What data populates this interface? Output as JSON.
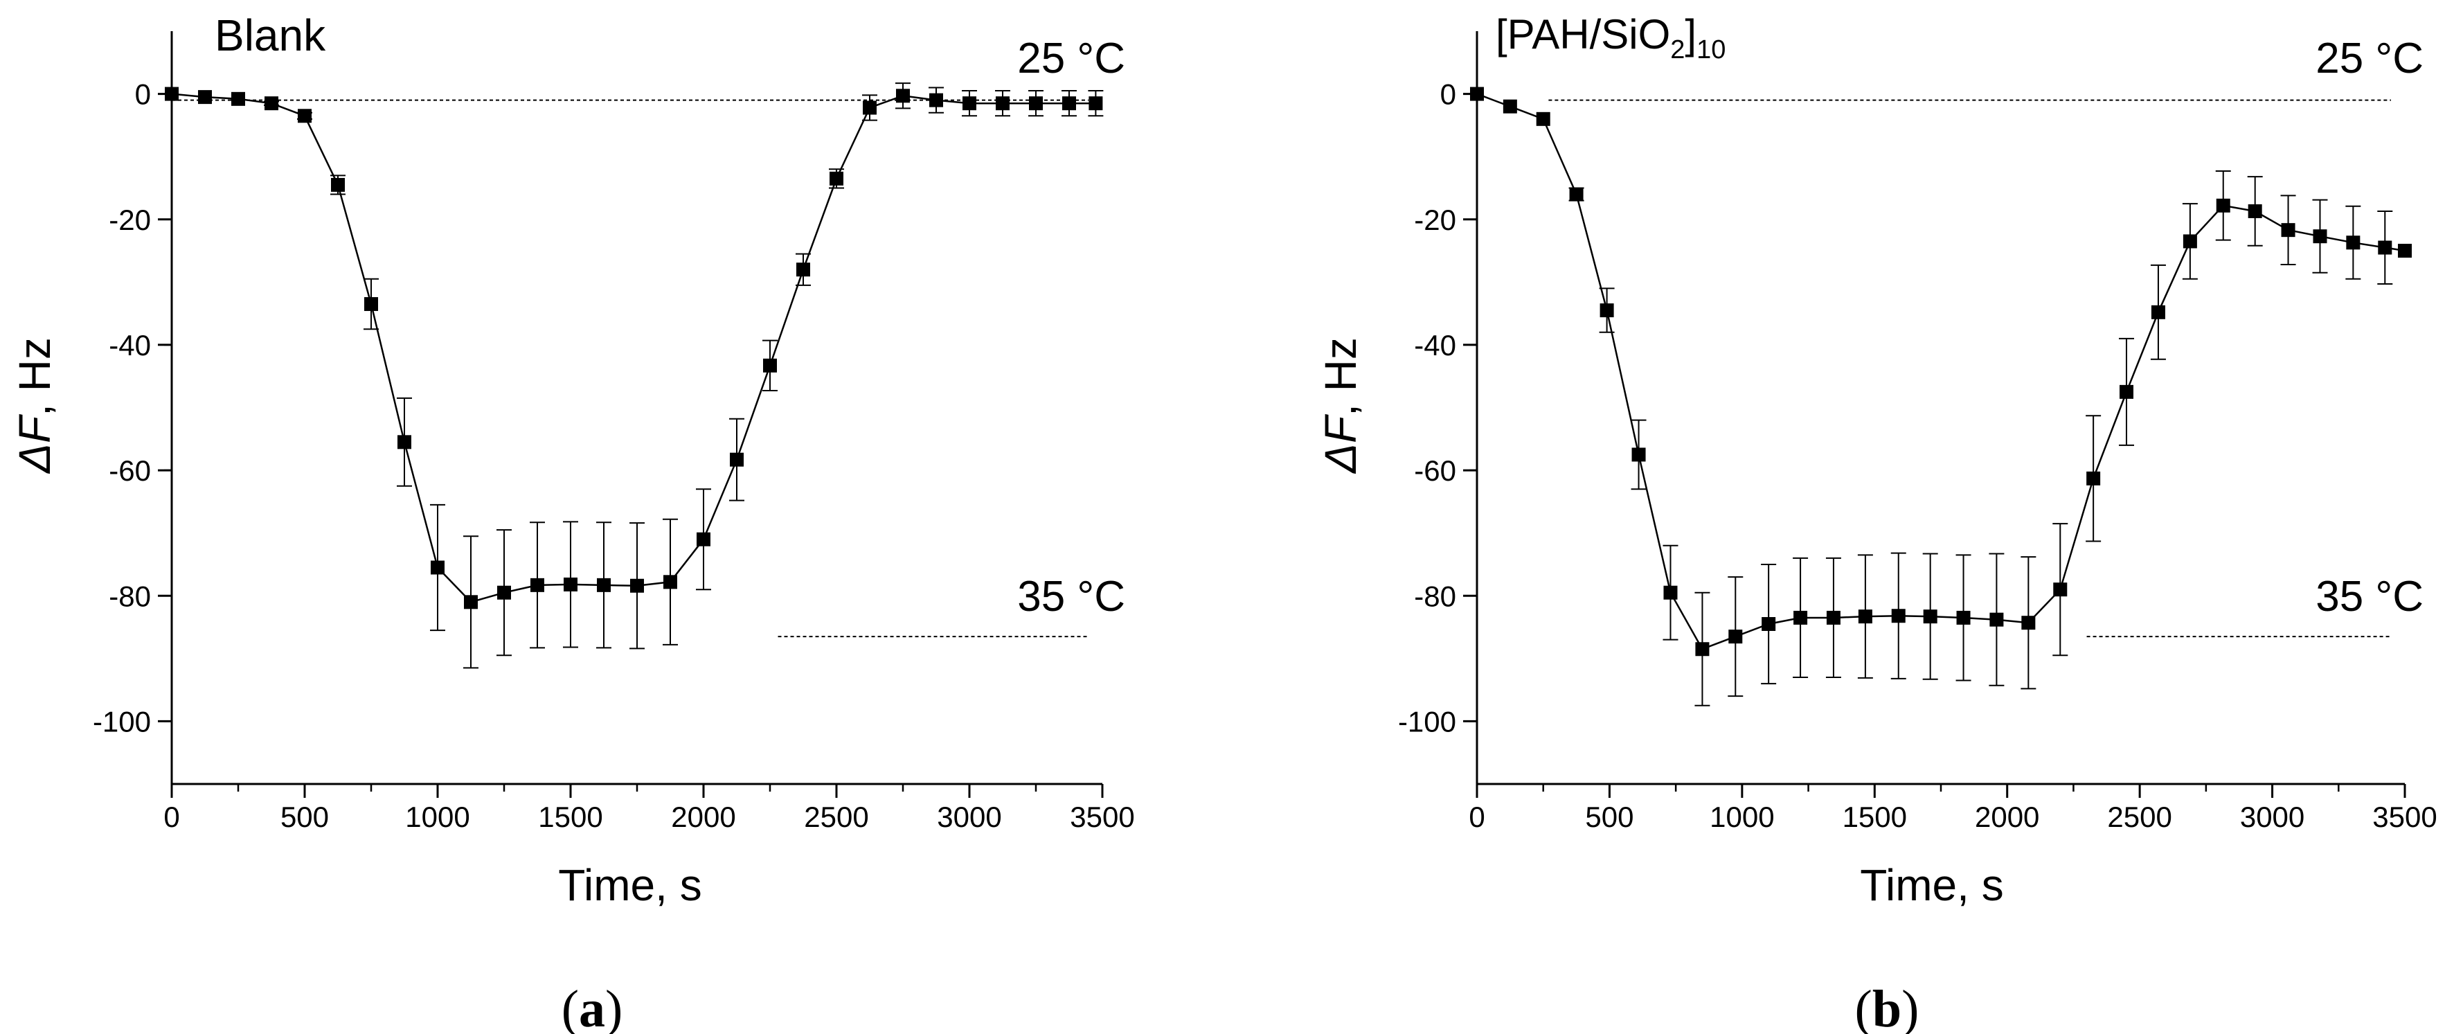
{
  "chart_data": [
    {
      "type": "line",
      "panel": "(a)",
      "panel_letter": "a",
      "title": "Blank",
      "xlabel": "Time, s",
      "ylabel_symbol": "ΔF",
      "ylabel_unit": ", Hz",
      "xlim": [
        0,
        3500
      ],
      "ylim": [
        -110,
        10
      ],
      "xticks": [
        0,
        500,
        1000,
        1500,
        2000,
        2500,
        3000,
        3500
      ],
      "yticks": [
        0,
        -20,
        -40,
        -60,
        -80,
        -100
      ],
      "grid": false,
      "series": [
        {
          "name": "Blank",
          "x": [
            0,
            125,
            250,
            375,
            500,
            625,
            750,
            875,
            1000,
            1125,
            1250,
            1375,
            1500,
            1625,
            1750,
            1875,
            2000,
            2125,
            2250,
            2375,
            2500,
            2625,
            2750,
            2875,
            3000,
            3125,
            3250,
            3375,
            3475
          ],
          "y": [
            0,
            -0.5,
            -0.8,
            -1.5,
            -3.5,
            -14.5,
            -33.5,
            -55.5,
            -75.5,
            -81,
            -79.5,
            -78.3,
            -78.2,
            -78.3,
            -78.4,
            -77.8,
            -71,
            -58.3,
            -43.3,
            -28,
            -13.5,
            -2.2,
            -0.3,
            -1,
            -1.5,
            -1.5,
            -1.5,
            -1.5,
            -1.5
          ],
          "err": [
            0,
            0,
            0,
            0.3,
            0.5,
            1.5,
            4,
            7,
            10,
            10.5,
            10,
            10,
            10,
            10,
            10,
            10,
            8,
            6.5,
            4,
            2.5,
            1.5,
            2,
            2,
            2,
            2,
            2,
            2,
            2,
            2
          ]
        }
      ],
      "reference_lines": [
        {
          "label": "25 °C",
          "y": -1,
          "x": [
            0,
            3500
          ]
        },
        {
          "label": "35 °C",
          "y": -86.5,
          "x": [
            2280,
            3500
          ]
        }
      ]
    },
    {
      "type": "line",
      "panel": "(b)",
      "panel_letter": "b",
      "title_main": "[PAH/SiO",
      "title_sub1": "2",
      "title_mid": "]",
      "title_sub2": "10",
      "xlabel": "Time, s",
      "ylabel_symbol": "ΔF",
      "ylabel_unit": ", Hz",
      "xlim": [
        0,
        3500
      ],
      "ylim": [
        -110,
        10
      ],
      "xticks": [
        0,
        500,
        1000,
        1500,
        2000,
        2500,
        3000,
        3500
      ],
      "yticks": [
        0,
        -20,
        -40,
        -60,
        -80,
        -100
      ],
      "grid": false,
      "series": [
        {
          "name": "[PAH/SiO2]10",
          "x": [
            0,
            125,
            250,
            375,
            490,
            610,
            730,
            850,
            975,
            1100,
            1220,
            1345,
            1465,
            1590,
            1710,
            1835,
            1960,
            2080,
            2200,
            2325,
            2450,
            2570,
            2690,
            2815,
            2935,
            3060,
            3180,
            3305,
            3425,
            3500
          ],
          "y": [
            0,
            -2,
            -4,
            -16,
            -34.5,
            -57.5,
            -79.5,
            -88.5,
            -86.5,
            -84.5,
            -83.5,
            -83.5,
            -83.3,
            -83.2,
            -83.3,
            -83.5,
            -83.8,
            -84.3,
            -79,
            -61.3,
            -47.5,
            -34.8,
            -23.5,
            -17.8,
            -18.7,
            -21.7,
            -22.7,
            -23.7,
            -24.5,
            -25
          ],
          "err": [
            0,
            0,
            0,
            1,
            3.5,
            5.5,
            7.5,
            9,
            9.5,
            9.5,
            9.5,
            9.5,
            9.8,
            10,
            10,
            10,
            10.5,
            10.5,
            10.5,
            10,
            8.5,
            7.5,
            6,
            5.5,
            5.5,
            5.5,
            5.8,
            5.8,
            5.8,
            0
          ]
        }
      ],
      "reference_lines": [
        {
          "label": "25 °C",
          "y": -1,
          "x": [
            270,
            3500
          ]
        },
        {
          "label": "35 °C",
          "y": -86.5,
          "x": [
            2300,
            3500
          ]
        }
      ]
    }
  ]
}
